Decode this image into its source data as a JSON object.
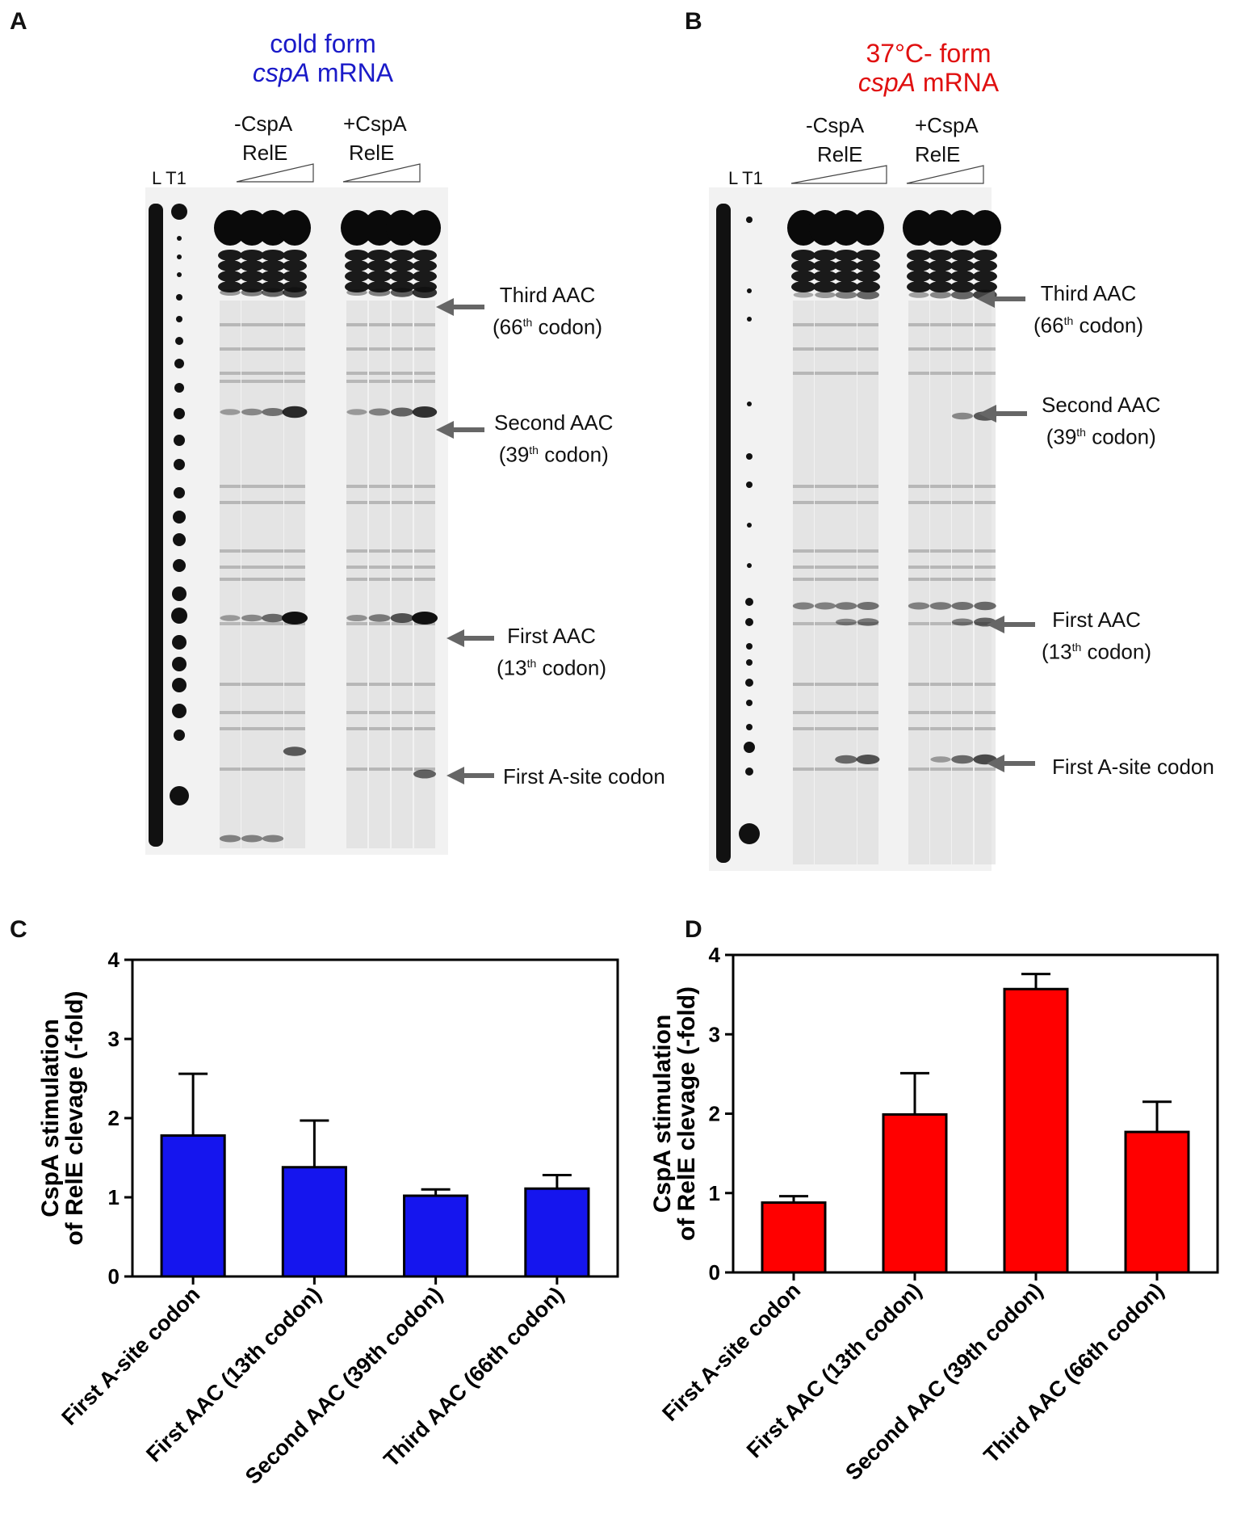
{
  "panels": {
    "A": {
      "letter": "A",
      "title_line1": "cold form",
      "title_gene": "cspA",
      "title_rna": "mRNA",
      "title_color": "#1a1ac8",
      "lane_markers": "L T1",
      "group_minus": "-CspA",
      "group_plus": "+CspA",
      "enzyme_label": "RelE",
      "annotations": [
        {
          "line1": "Third AAC",
          "ord": "66",
          "line2_suffix": "codon"
        },
        {
          "line1": "Second AAC",
          "ord": "39",
          "line2_suffix": "codon"
        },
        {
          "line1": "First AAC",
          "ord": "13",
          "line2_suffix": "codon"
        },
        {
          "line1": "First A-site codon"
        }
      ]
    },
    "B": {
      "letter": "B",
      "title_line1": "37°C- form",
      "title_gene": "cspA",
      "title_rna": "mRNA",
      "title_color": "#e01010",
      "lane_markers": "L T1",
      "group_minus": "-CspA",
      "group_plus": "+CspA",
      "enzyme_label": "RelE",
      "annotations": [
        {
          "line1": "Third AAC",
          "ord": "66",
          "line2_suffix": "codon"
        },
        {
          "line1": "Second AAC",
          "ord": "39",
          "line2_suffix": "codon"
        },
        {
          "line1": "First AAC",
          "ord": "13",
          "line2_suffix": "codon"
        },
        {
          "line1": "First A-site codon"
        }
      ]
    },
    "C": {
      "letter": "C"
    },
    "D": {
      "letter": "D"
    },
    "ordinal_suffix": "th"
  },
  "chart_data": [
    {
      "type": "bar",
      "id": "C",
      "categories": [
        "First A-site codon",
        "First AAC (13th codon)",
        "Second AAC (39th codon)",
        "Third AAC (66th codon)"
      ],
      "values": [
        1.78,
        1.38,
        1.02,
        1.11
      ],
      "errors": [
        0.78,
        0.59,
        0.08,
        0.17
      ],
      "bar_color": "#1515ee",
      "ylabel_line1": "CspA stimulation",
      "ylabel_line2": "of RelE clevage (-fold)",
      "ylim": [
        0,
        4
      ],
      "yticks": [
        "0",
        "1",
        "2",
        "3",
        "4"
      ]
    },
    {
      "type": "bar",
      "id": "D",
      "categories": [
        "First A-site codon",
        "First AAC (13th codon)",
        "Second AAC (39th codon)",
        "Third AAC (66th codon)"
      ],
      "values": [
        0.88,
        1.99,
        3.57,
        1.77
      ],
      "errors": [
        0.08,
        0.52,
        0.19,
        0.38
      ],
      "bar_color": "#ff0000",
      "ylabel_line1": "CspA stimulation",
      "ylabel_line2": "of RelE clevage (-fold)",
      "ylim": [
        0,
        4
      ],
      "yticks": [
        "0",
        "1",
        "2",
        "3",
        "4"
      ]
    }
  ]
}
